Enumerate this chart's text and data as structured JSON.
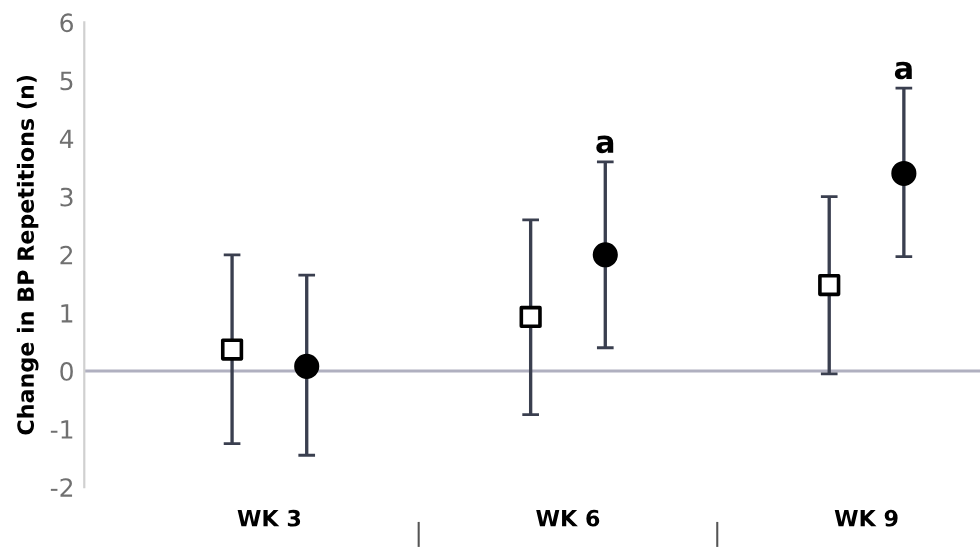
{
  "chart_data": {
    "type": "scatter",
    "ylabel": "Change in BP Repetitions (n)",
    "categories": [
      "WK 3",
      "WK 6",
      "WK 9"
    ],
    "series": [
      {
        "color": "#000000",
        "marker": "square",
        "values": [
          0.37,
          0.93,
          1.48
        ],
        "errors": [
          [
            -1.25,
            2.0
          ],
          [
            -0.75,
            2.6
          ],
          [
            -0.05,
            3.0
          ]
        ]
      },
      {
        "color": "#000000",
        "marker": "circle",
        "values": [
          0.08,
          2.0,
          3.4
        ],
        "value_labels": [
          null,
          "a",
          "a"
        ],
        "errors": [
          [
            -1.45,
            1.65
          ],
          [
            0.4,
            3.6
          ],
          [
            1.97,
            4.87
          ]
        ]
      }
    ],
    "ylim": [
      -2,
      6
    ],
    "yticks": [
      -2,
      -1,
      0,
      1,
      2,
      3,
      4,
      5,
      6
    ],
    "ref_lines": [
      {
        "axis": "y",
        "value": 0,
        "color": "#b0b0c0"
      }
    ],
    "annotations": [
      "|",
      "|"
    ],
    "grid": false,
    "legend": false
  }
}
